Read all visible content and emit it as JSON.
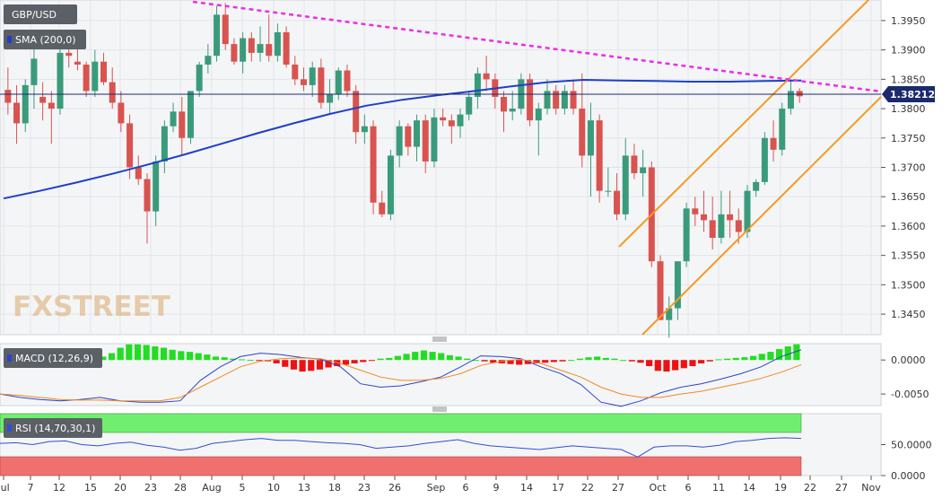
{
  "chart_data": {
    "type": "candlestick",
    "symbol": "GBP/USD",
    "indicator_labels": {
      "sma": "SMA (200,0)",
      "macd": "MACD (12,26,9)",
      "rsi": "RSI (14,70,30,1)"
    },
    "watermark": "FXSTREET",
    "last_price": "1.382120",
    "price_axis": {
      "ticks": [
        "1.3950",
        "1.3900",
        "1.3850",
        "1.3800",
        "1.3750",
        "1.3700",
        "1.3650",
        "1.3600",
        "1.3550",
        "1.3500",
        "1.3450"
      ],
      "ylim": [
        1.3415,
        1.3985
      ]
    },
    "macd_axis": {
      "ticks": [
        "0.0000",
        "-0.0050"
      ],
      "ylim": [
        -0.0067,
        0.0024
      ]
    },
    "rsi_axis": {
      "ticks": [
        "50.0000",
        "0.0000"
      ],
      "ylim": [
        0,
        100
      ]
    },
    "x_tick_labels": [
      "Jul",
      "7",
      "12",
      "15",
      "20",
      "23",
      "28",
      "Aug",
      "5",
      "10",
      "13",
      "18",
      "23",
      "26",
      "Sep",
      "6",
      "9",
      "14",
      "17",
      "22",
      "27",
      "Oct",
      "6",
      "11",
      "14",
      "19",
      "22",
      "27",
      "Nov"
    ],
    "colors": {
      "up": "#3a9b7a",
      "down": "#d9534f",
      "sma": "#1f3fc8",
      "trendline": "#e830e8",
      "channel": "#f59a23",
      "macd_line": "#2a45c8",
      "signal_line": "#f08a24",
      "hist_up": "#22dd22",
      "hist_down": "#ee1111",
      "rsi_line": "#3050d0",
      "rsi_over": "#70ee70",
      "rsi_under": "#f07070"
    },
    "candles": [
      [
        1.3832,
        1.387,
        1.379,
        1.381
      ],
      [
        1.381,
        1.384,
        1.374,
        1.3775
      ],
      [
        1.3775,
        1.385,
        1.376,
        1.384
      ],
      [
        1.384,
        1.3905,
        1.38,
        1.3885
      ],
      [
        1.382,
        1.3845,
        1.378,
        1.381
      ],
      [
        1.381,
        1.383,
        1.374,
        1.38
      ],
      [
        1.38,
        1.3905,
        1.379,
        1.3895
      ],
      [
        1.3895,
        1.392,
        1.387,
        1.389
      ],
      [
        1.388,
        1.391,
        1.3865,
        1.3875
      ],
      [
        1.3875,
        1.388,
        1.382,
        1.383
      ],
      [
        1.383,
        1.39,
        1.382,
        1.388
      ],
      [
        1.388,
        1.3895,
        1.384,
        1.3845
      ],
      [
        1.3845,
        1.387,
        1.38,
        1.381
      ],
      [
        1.381,
        1.383,
        1.376,
        1.3775
      ],
      [
        1.3775,
        1.379,
        1.368,
        1.37
      ],
      [
        1.37,
        1.372,
        1.367,
        1.368
      ],
      [
        1.368,
        1.369,
        1.357,
        1.3625
      ],
      [
        1.3625,
        1.372,
        1.36,
        1.371
      ],
      [
        1.371,
        1.378,
        1.369,
        1.377
      ],
      [
        1.377,
        1.381,
        1.376,
        1.3795
      ],
      [
        1.3795,
        1.382,
        1.372,
        1.375
      ],
      [
        1.375,
        1.383,
        1.374,
        1.383
      ],
      [
        1.383,
        1.388,
        1.382,
        1.3875
      ],
      [
        1.3875,
        1.391,
        1.386,
        1.389
      ],
      [
        1.389,
        1.3975,
        1.388,
        1.396
      ],
      [
        1.396,
        1.398,
        1.39,
        1.391
      ],
      [
        1.391,
        1.392,
        1.3875,
        1.388
      ],
      [
        1.388,
        1.393,
        1.386,
        1.392
      ],
      [
        1.392,
        1.393,
        1.388,
        1.3895
      ],
      [
        1.3895,
        1.394,
        1.388,
        1.391
      ],
      [
        1.391,
        1.396,
        1.388,
        1.389
      ],
      [
        1.389,
        1.3945,
        1.388,
        1.393
      ],
      [
        1.393,
        1.394,
        1.387,
        1.3875
      ],
      [
        1.3875,
        1.389,
        1.384,
        1.385
      ],
      [
        1.385,
        1.387,
        1.383,
        1.384
      ],
      [
        1.384,
        1.388,
        1.382,
        1.387
      ],
      [
        1.387,
        1.3885,
        1.38,
        1.381
      ],
      [
        1.381,
        1.385,
        1.379,
        1.3825
      ],
      [
        1.3825,
        1.387,
        1.3815,
        1.3865
      ],
      [
        1.3865,
        1.3875,
        1.382,
        1.383
      ],
      [
        1.383,
        1.384,
        1.374,
        1.376
      ],
      [
        1.376,
        1.379,
        1.374,
        1.377
      ],
      [
        1.377,
        1.378,
        1.362,
        1.364
      ],
      [
        1.364,
        1.366,
        1.3615,
        1.362
      ],
      [
        1.362,
        1.373,
        1.361,
        1.372
      ],
      [
        1.372,
        1.378,
        1.37,
        1.377
      ],
      [
        1.377,
        1.3775,
        1.372,
        1.3735
      ],
      [
        1.3735,
        1.379,
        1.371,
        1.378
      ],
      [
        1.378,
        1.379,
        1.369,
        1.371
      ],
      [
        1.371,
        1.38,
        1.37,
        1.3785
      ],
      [
        1.3785,
        1.38,
        1.377,
        1.378
      ],
      [
        1.378,
        1.379,
        1.374,
        1.377
      ],
      [
        1.377,
        1.38,
        1.375,
        1.379
      ],
      [
        1.379,
        1.383,
        1.378,
        1.382
      ],
      [
        1.382,
        1.387,
        1.38,
        1.386
      ],
      [
        1.386,
        1.389,
        1.383,
        1.385
      ],
      [
        1.385,
        1.386,
        1.38,
        1.382
      ],
      [
        1.382,
        1.383,
        1.376,
        1.3795
      ],
      [
        1.3795,
        1.383,
        1.378,
        1.38
      ],
      [
        1.38,
        1.386,
        1.379,
        1.385
      ],
      [
        1.385,
        1.386,
        1.377,
        1.378
      ],
      [
        1.378,
        1.381,
        1.372,
        1.38
      ],
      [
        1.38,
        1.385,
        1.379,
        1.383
      ],
      [
        1.383,
        1.384,
        1.379,
        1.38
      ],
      [
        1.38,
        1.384,
        1.379,
        1.383
      ],
      [
        1.383,
        1.385,
        1.379,
        1.38
      ],
      [
        1.38,
        1.386,
        1.37,
        1.372
      ],
      [
        1.372,
        1.381,
        1.365,
        1.378
      ],
      [
        1.378,
        1.379,
        1.364,
        1.366
      ],
      [
        1.366,
        1.37,
        1.365,
        1.366
      ],
      [
        1.366,
        1.369,
        1.361,
        1.362
      ],
      [
        1.362,
        1.375,
        1.361,
        1.372
      ],
      [
        1.372,
        1.374,
        1.368,
        1.369
      ],
      [
        1.369,
        1.373,
        1.365,
        1.37
      ],
      [
        1.37,
        1.371,
        1.353,
        1.354
      ],
      [
        1.354,
        1.355,
        1.344,
        1.344
      ],
      [
        1.344,
        1.348,
        1.341,
        1.346
      ],
      [
        1.346,
        1.354,
        1.344,
        1.354
      ],
      [
        1.354,
        1.364,
        1.353,
        1.363
      ],
      [
        1.363,
        1.365,
        1.36,
        1.362
      ],
      [
        1.362,
        1.366,
        1.359,
        1.361
      ],
      [
        1.361,
        1.365,
        1.356,
        1.358
      ],
      [
        1.358,
        1.366,
        1.357,
        1.362
      ],
      [
        1.362,
        1.366,
        1.358,
        1.361
      ],
      [
        1.361,
        1.363,
        1.357,
        1.359
      ],
      [
        1.359,
        1.367,
        1.358,
        1.366
      ],
      [
        1.366,
        1.368,
        1.365,
        1.3675
      ],
      [
        1.3675,
        1.376,
        1.367,
        1.375
      ],
      [
        1.375,
        1.378,
        1.371,
        1.373
      ],
      [
        1.373,
        1.381,
        1.372,
        1.38
      ],
      [
        1.38,
        1.385,
        1.379,
        1.383
      ],
      [
        1.383,
        1.3835,
        1.381,
        1.3821
      ]
    ],
    "sma_200": [
      1.3647,
      1.366,
      1.3674,
      1.3689,
      1.3705,
      1.3722,
      1.374,
      1.3758,
      1.3775,
      1.3791,
      1.3805,
      1.3815,
      1.3823,
      1.383,
      1.3838,
      1.3845,
      1.3849,
      1.3848,
      1.3847,
      1.3846,
      1.3846,
      1.3847,
      1.3848
    ],
    "trendline": {
      "from": [
        1.3985
      ],
      "to": [
        1.3826
      ],
      "label": ""
    },
    "macd_line": [
      -0.005,
      -0.0055,
      -0.0058,
      -0.006,
      -0.0058,
      -0.0055,
      -0.006,
      -0.0062,
      -0.0062,
      -0.006,
      -0.003,
      -0.001,
      0.0005,
      0.001,
      0.0008,
      0.0004,
      0.0001,
      -0.001,
      -0.0035,
      -0.004,
      -0.0038,
      -0.0032,
      -0.0025,
      -0.001,
      0.0006,
      0.0005,
      0.0002,
      -0.001,
      -0.002,
      -0.0036,
      -0.0062,
      -0.0068,
      -0.006,
      -0.0048,
      -0.004,
      -0.0035,
      -0.0028,
      -0.002,
      -0.001,
      0.0005,
      0.0015
    ],
    "signal_line": [
      -0.005,
      -0.0052,
      -0.0055,
      -0.0058,
      -0.0059,
      -0.0059,
      -0.006,
      -0.006,
      -0.006,
      -0.0055,
      -0.004,
      -0.0025,
      -0.001,
      -0.0002,
      0.0002,
      0.0003,
      0.0002,
      -0.0005,
      -0.0015,
      -0.0025,
      -0.003,
      -0.003,
      -0.0027,
      -0.002,
      -0.0008,
      -0.0002,
      0.0001,
      -0.0005,
      -0.0015,
      -0.0025,
      -0.004,
      -0.005,
      -0.0055,
      -0.0055,
      -0.005,
      -0.0046,
      -0.004,
      -0.0034,
      -0.0027,
      -0.0018,
      -0.0007
    ],
    "macd_hist": [
      0.0008,
      0.0006,
      0.0004,
      0.0002,
      0.0001,
      -0.0002,
      -0.0003,
      -0.0004,
      -0.0003,
      -0.0002,
      -0.0001,
      0.0005,
      0.001,
      0.0018,
      0.0023,
      0.0023,
      0.0022,
      0.002,
      0.0018,
      0.0015,
      0.0013,
      0.0012,
      0.001,
      0.0008,
      0.0005,
      0.0004,
      0.0002,
      0.0001,
      0.0,
      -0.0001,
      -0.0002,
      -0.0005,
      -0.001,
      -0.0014,
      -0.0017,
      -0.0016,
      -0.0014,
      -0.0011,
      -0.0009,
      -0.0007,
      -0.0005,
      -0.0003,
      -0.0001,
      0.0002,
      0.0003,
      0.0006,
      0.0009,
      0.0012,
      0.0014,
      0.0012,
      0.001,
      0.0007,
      0.0005,
      0.0002,
      0.0,
      -0.0002,
      -0.0004,
      -0.0005,
      -0.0006,
      -0.0007,
      -0.0006,
      -0.0005,
      -0.0004,
      -0.0003,
      -0.0002,
      0.0,
      0.0002,
      0.0004,
      0.0005,
      0.0003,
      0.0002,
      0.0,
      -0.0002,
      -0.0004,
      -0.0009,
      -0.0016,
      -0.0017,
      -0.0015,
      -0.0012,
      -0.0009,
      -0.0005,
      -0.0002,
      0.0001,
      0.0002,
      0.0003,
      0.0004,
      0.0006,
      0.0009,
      0.0012,
      0.0016,
      0.002,
      0.0023
    ],
    "rsi": [
      52,
      53,
      50,
      55,
      56,
      50,
      48,
      52,
      54,
      49,
      46,
      41,
      44,
      52,
      55,
      58,
      60,
      57,
      57,
      55,
      53,
      52,
      50,
      44,
      46,
      48,
      52,
      55,
      58,
      52,
      48,
      46,
      44,
      42,
      45,
      48,
      46,
      44,
      42,
      30,
      46,
      48,
      48,
      46,
      49,
      55,
      57,
      60,
      61,
      60
    ]
  }
}
